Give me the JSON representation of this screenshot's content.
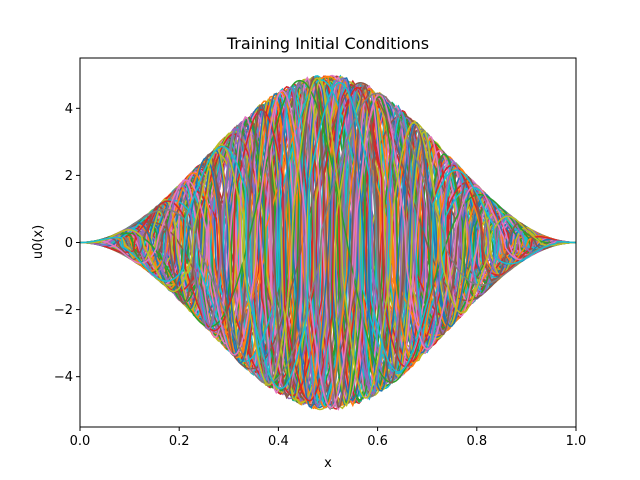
{
  "chart_data": {
    "type": "line",
    "title": "Training Initial Conditions",
    "xlabel": "x",
    "ylabel": "u0(x)",
    "xlim": [
      0.0,
      1.0
    ],
    "ylim": [
      -5.5,
      5.5
    ],
    "grid": false,
    "legend": "none",
    "x_ticks": [
      0.0,
      0.2,
      0.4,
      0.6,
      0.8,
      1.0
    ],
    "x_tick_labels": [
      "0.0",
      "0.2",
      "0.4",
      "0.6",
      "0.8",
      "1.0"
    ],
    "y_ticks": [
      -4,
      -2,
      0,
      2,
      4
    ],
    "y_tick_labels": [
      "−4",
      "−2",
      "0",
      "2",
      "4"
    ],
    "series_description": "Many curves u0(x) = A*sin(k*pi*x)*sin(pi*x)^2 style oscillations bounded by an envelope of amplitude 5*sin(pi*x)^2",
    "envelope": {
      "formula": "5*sin(pi*x)^2",
      "max": 5.0,
      "min": -5.0
    },
    "series_count": 120,
    "palette": [
      "#1f77b4",
      "#ff7f0e",
      "#2ca02c",
      "#d62728",
      "#9467bd",
      "#8c564b",
      "#e377c2",
      "#7f7f7f",
      "#bcbd22",
      "#17becf"
    ]
  }
}
